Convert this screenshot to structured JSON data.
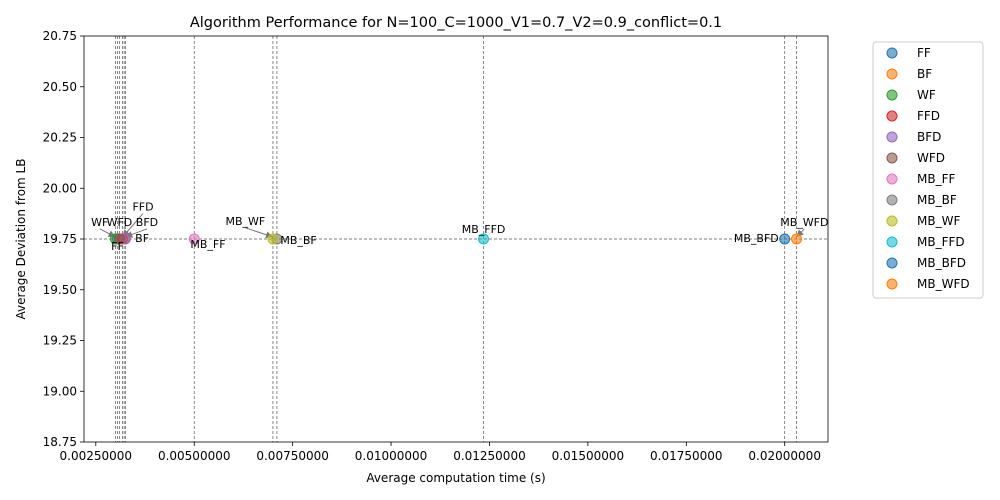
{
  "chart_data": {
    "type": "scatter",
    "title": "Algorithm Performance for N=100_C=1000_V1=0.7_V2=0.9_conflict=0.1",
    "xlabel": "Average computation time (s)",
    "ylabel": "Average Deviation from LB",
    "xlim": [
      0.0022,
      0.0211
    ],
    "ylim": [
      18.75,
      20.75
    ],
    "x_ticks": [
      0.0025,
      0.005,
      0.0075,
      0.01,
      0.0125,
      0.015,
      0.0175,
      0.02
    ],
    "x_tick_labels": [
      "0.00250000",
      "0.00500000",
      "0.00750000",
      "0.01000000",
      "0.01250000",
      "0.01500000",
      "0.01750000",
      "0.02000000"
    ],
    "y_ticks": [
      18.75,
      19.0,
      19.25,
      19.5,
      19.75,
      20.0,
      20.25,
      20.5,
      20.75
    ],
    "y_tick_labels": [
      "18.75",
      "19.00",
      "19.25",
      "19.50",
      "19.75",
      "20.00",
      "20.25",
      "20.50",
      "20.75"
    ],
    "grid": false,
    "reference_line_y": 19.75,
    "legend_position": "outside-right",
    "series": [
      {
        "name": "FF",
        "x": 0.00305,
        "y": 19.75,
        "color": "#1f77b4"
      },
      {
        "name": "BF",
        "x": 0.00322,
        "y": 19.75,
        "color": "#ff7f0e"
      },
      {
        "name": "WF",
        "x": 0.003,
        "y": 19.75,
        "color": "#2ca02c"
      },
      {
        "name": "FFD",
        "x": 0.00318,
        "y": 19.75,
        "color": "#d62728"
      },
      {
        "name": "BFD",
        "x": 0.00325,
        "y": 19.75,
        "color": "#9467bd"
      },
      {
        "name": "WFD",
        "x": 0.0031,
        "y": 19.75,
        "color": "#8c564b"
      },
      {
        "name": "MB_FF",
        "x": 0.005,
        "y": 19.75,
        "color": "#e377c2"
      },
      {
        "name": "MB_BF",
        "x": 0.0071,
        "y": 19.75,
        "color": "#7f7f7f"
      },
      {
        "name": "MB_WF",
        "x": 0.007,
        "y": 19.75,
        "color": "#bcbd22"
      },
      {
        "name": "MB_FFD",
        "x": 0.01235,
        "y": 19.75,
        "color": "#17becf"
      },
      {
        "name": "MB_BFD",
        "x": 0.02,
        "y": 19.75,
        "color": "#1f77b4"
      },
      {
        "name": "MB_WFD",
        "x": 0.0203,
        "y": 19.75,
        "color": "#ff7f0e"
      }
    ],
    "annotations": [
      {
        "text": "WF",
        "series": "WF",
        "label_x": 0.0026,
        "label_y": 19.815,
        "anchor": "middle",
        "arrow": true
      },
      {
        "text": "WFD",
        "series": "WFD",
        "label_x": 0.0031,
        "label_y": 19.815,
        "anchor": "middle",
        "arrow": false
      },
      {
        "text": "BFD",
        "series": "BFD",
        "label_x": 0.0038,
        "label_y": 19.815,
        "anchor": "middle",
        "arrow": true
      },
      {
        "text": "FFD",
        "series": "FFD",
        "label_x": 0.0037,
        "label_y": 19.89,
        "anchor": "middle",
        "arrow": true
      },
      {
        "text": "BF",
        "series": "BF",
        "label_x": 0.0035,
        "label_y": 19.735,
        "anchor": "start",
        "arrow": false
      },
      {
        "text": "FF",
        "series": "FF",
        "label_x": 0.00305,
        "label_y": 19.695,
        "anchor": "middle",
        "arrow": false
      },
      {
        "text": "MB_FF",
        "series": "MB_FF",
        "label_x": 0.00535,
        "label_y": 19.705,
        "anchor": "middle",
        "arrow": false
      },
      {
        "text": "MB_WF",
        "series": "MB_WF",
        "label_x": 0.0063,
        "label_y": 19.82,
        "anchor": "middle",
        "arrow": true
      },
      {
        "text": "MB_BF",
        "series": "MB_BF",
        "label_x": 0.00765,
        "label_y": 19.725,
        "anchor": "middle",
        "arrow": false
      },
      {
        "text": "MB_FFD",
        "series": "MB_FFD",
        "label_x": 0.01235,
        "label_y": 19.78,
        "anchor": "middle",
        "arrow": false
      },
      {
        "text": "MB_BFD",
        "series": "MB_BFD",
        "label_x": 0.01985,
        "label_y": 19.735,
        "anchor": "end",
        "arrow": false
      },
      {
        "text": "MB_WFD",
        "series": "MB_WFD",
        "label_x": 0.0205,
        "label_y": 19.815,
        "anchor": "middle",
        "arrow": true
      }
    ]
  }
}
